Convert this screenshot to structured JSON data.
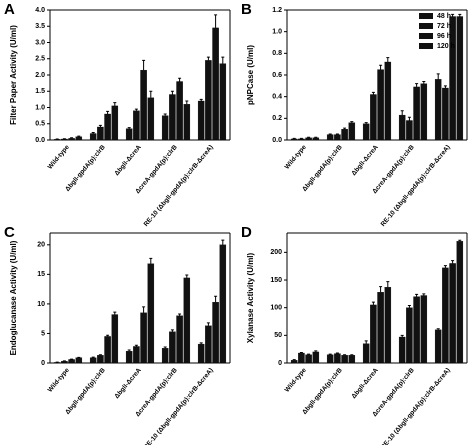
{
  "chart_data": [
    {
      "type": "bar",
      "label": "A",
      "ylabel": "Filter Paper Activity (U/ml)",
      "categories": [
        "Wild-type",
        "ΔbglI-gpdA(p):clrB",
        "ΔbglI-ΔcreA",
        "ΔcreA-gpdA(p):clrB",
        "RE-10 (ΔbglI-gpdA(p):clrB-ΔcreA)"
      ],
      "series": [
        {
          "color": "#111111",
          "values": [
            0.02,
            0.2,
            0.35,
            0.75,
            1.2
          ],
          "errors": [
            0.01,
            0.03,
            0.03,
            0.05,
            0.05
          ]
        },
        {
          "color": "#111111",
          "values": [
            0.03,
            0.4,
            0.9,
            1.4,
            2.45
          ],
          "errors": [
            0.01,
            0.05,
            0.05,
            0.1,
            0.1
          ]
        },
        {
          "color": "#111111",
          "values": [
            0.05,
            0.8,
            2.15,
            1.8,
            3.45
          ],
          "errors": [
            0.02,
            0.08,
            0.3,
            0.1,
            0.4
          ]
        },
        {
          "color": "#111111",
          "values": [
            0.1,
            1.05,
            1.3,
            1.1,
            2.35
          ],
          "errors": [
            0.02,
            0.1,
            0.2,
            0.1,
            0.2
          ]
        }
      ],
      "ylim": [
        0,
        4
      ],
      "yticks": [
        {
          "value": 0,
          "label": "0.0"
        },
        0.5,
        {
          "value": 1,
          "label": "1.0"
        },
        1.5,
        {
          "value": 2,
          "label": "2.0"
        },
        2.5,
        {
          "value": 3,
          "label": "3.0"
        },
        3.5,
        {
          "value": 4,
          "label": "4.0"
        }
      ]
    },
    {
      "type": "bar",
      "label": "B",
      "ylabel": "pNPCase (U/ml)",
      "legend": "upper right",
      "categories": [
        "Wild-type",
        "ΔbglI-gpdA(p):clrB",
        "ΔbglI-ΔcreA",
        "ΔcreA-gpdA(p):clrB",
        "RE-10 (ΔbglI-gpdA(p):clrB-ΔcreA)"
      ],
      "series": [
        {
          "name": "48 h",
          "color": "#111111",
          "values": [
            0.01,
            0.05,
            0.15,
            0.23,
            0.56
          ],
          "errors": [
            0.005,
            0.005,
            0.01,
            0.04,
            0.05
          ]
        },
        {
          "name": "72 h",
          "color": "#111111",
          "values": [
            0.01,
            0.05,
            0.42,
            0.18,
            0.48
          ],
          "errors": [
            0.005,
            0.005,
            0.02,
            0.03,
            0.02
          ]
        },
        {
          "name": "96 h",
          "color": "#111111",
          "values": [
            0.02,
            0.1,
            0.65,
            0.49,
            1.14
          ],
          "errors": [
            0.005,
            0.01,
            0.04,
            0.03,
            0.02
          ]
        },
        {
          "name": "120 h",
          "color": "#111111",
          "values": [
            0.02,
            0.16,
            0.72,
            0.52,
            1.14
          ],
          "errors": [
            0.005,
            0.01,
            0.04,
            0.02,
            0.02
          ]
        }
      ],
      "ylim": [
        0,
        1.2
      ],
      "yticks": [
        {
          "value": 0,
          "label": "0.0"
        },
        0.2,
        0.4,
        0.6,
        0.8,
        {
          "value": 1,
          "label": "1.0"
        },
        1.2
      ]
    },
    {
      "type": "bar",
      "label": "C",
      "ylabel": "Endoglucanase Activity (U/ml)",
      "categories": [
        "Wild-type",
        "ΔbglI-gpdA(p):clrB",
        "ΔbglI-ΔcreA",
        "ΔcreA-gpdA(p):clrB",
        "RE-10 (ΔbglI-gpdA(p):clrB-ΔcreA)"
      ],
      "series": [
        {
          "color": "#111111",
          "values": [
            0.1,
            0.9,
            2.0,
            2.5,
            3.2
          ],
          "errors": [
            0.05,
            0.1,
            0.2,
            0.2,
            0.2
          ]
        },
        {
          "color": "#111111",
          "values": [
            0.3,
            1.3,
            2.8,
            5.3,
            6.3
          ],
          "errors": [
            0.05,
            0.1,
            0.2,
            0.3,
            0.5
          ]
        },
        {
          "color": "#111111",
          "values": [
            0.6,
            4.5,
            8.5,
            8.0,
            10.3
          ],
          "errors": [
            0.05,
            0.2,
            1.0,
            0.3,
            1.0
          ]
        },
        {
          "color": "#111111",
          "values": [
            0.9,
            8.2,
            16.8,
            14.4,
            20.0
          ],
          "errors": [
            0.05,
            0.4,
            0.9,
            0.5,
            0.8
          ]
        }
      ],
      "ylim": [
        0,
        22
      ],
      "yticks": [
        0,
        5,
        10,
        15,
        20
      ]
    },
    {
      "type": "bar",
      "label": "D",
      "ylabel": "Xylanase Activity (U/ml)",
      "categories": [
        "Wild-type",
        "ΔbglI-gpdA(p):clrB",
        "ΔbglI-ΔcreA",
        "ΔcreA-gpdA(p):clrB",
        "RE-10 (ΔbglI-gpdA(p):clrB-ΔcreA)"
      ],
      "series": [
        {
          "color": "#111111",
          "values": [
            5,
            15,
            35,
            47,
            60
          ],
          "errors": [
            1,
            1,
            5,
            3,
            2
          ]
        },
        {
          "color": "#111111",
          "values": [
            18,
            17,
            105,
            100,
            172
          ],
          "errors": [
            1,
            1,
            5,
            4,
            4
          ]
        },
        {
          "color": "#111111",
          "values": [
            15,
            14,
            128,
            120,
            180
          ],
          "errors": [
            1,
            1,
            10,
            4,
            5
          ]
        },
        {
          "color": "#111111",
          "values": [
            20,
            14,
            137,
            122,
            220
          ],
          "errors": [
            2,
            1,
            10,
            3,
            2
          ]
        }
      ],
      "ylim": [
        0,
        235
      ],
      "yticks": [
        0,
        50,
        100,
        150,
        200
      ]
    }
  ]
}
